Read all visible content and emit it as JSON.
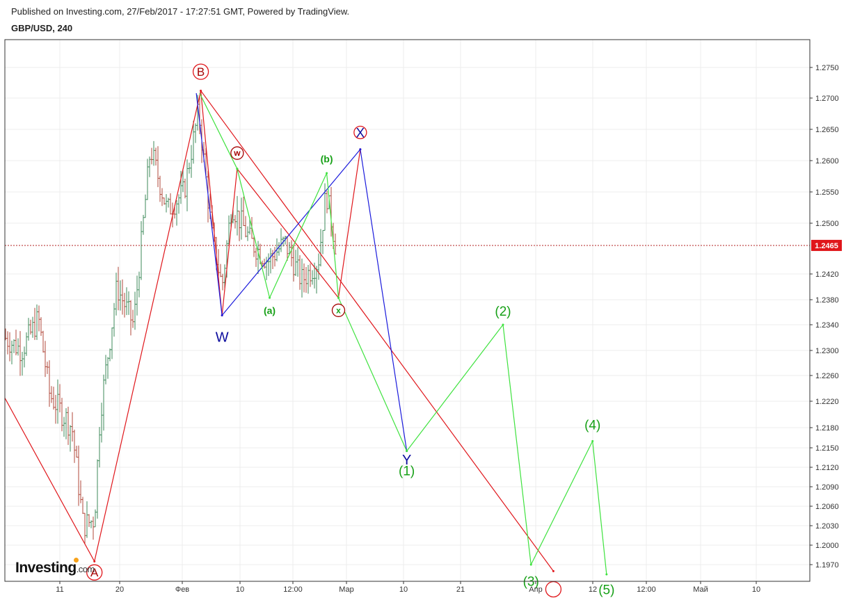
{
  "header": {
    "published": "Published on Investing.com, 27/Feb/2017 - 17:27:51 GMT, Powered by TradingView.",
    "symbol": "GBP/USD, 240"
  },
  "logo": {
    "brand": "Investing",
    "suffix": ".com"
  },
  "colors": {
    "red": "#e0161b",
    "green": "#3ee23e",
    "blue": "#1a1adc",
    "dark_red": "#a50000",
    "label_green": "#16a016",
    "label_blue": "#0d0d9e",
    "candle_up": "#3c8a5a",
    "candle_down": "#b0473a",
    "price_line": "#b22222"
  },
  "chart_data": {
    "type": "line",
    "title": "GBP/USD, 240",
    "ylim": [
      1.193,
      1.2785
    ],
    "y_ticks": [
      1.275,
      1.27,
      1.265,
      1.26,
      1.255,
      1.25,
      1.242,
      1.238,
      1.234,
      1.23,
      1.226,
      1.222,
      1.218,
      1.215,
      1.212,
      1.209,
      1.206,
      1.203,
      1.2,
      1.197
    ],
    "x_ticks": [
      "11",
      "20",
      "Фев",
      "10",
      "12:00",
      "Мар",
      "10",
      "21",
      "Апр",
      "12",
      "12:00",
      "Май",
      "10"
    ],
    "current_price": 1.2465,
    "current_price_label": "1.2465",
    "series": [
      {
        "name": "red_waves",
        "color": "#e0161b",
        "lines": [
          [
            [
              0,
              1.2225
            ],
            [
              16,
              1.1975
            ]
          ],
          [
            [
              16,
              1.1975
            ],
            [
              35,
              1.2712
            ]
          ],
          [
            [
              35,
              1.2712
            ],
            [
              38.8,
              1.2355
            ]
          ],
          [
            [
              38.8,
              1.2355
            ],
            [
              41.5,
              1.2587
            ]
          ],
          [
            [
              41.5,
              1.2587
            ],
            [
              59.6,
              1.2383
            ]
          ],
          [
            [
              59.6,
              1.2383
            ],
            [
              63.5,
              1.2618
            ]
          ],
          [
            [
              35,
              1.2712
            ],
            [
              98,
              1.196
            ]
          ]
        ]
      },
      {
        "name": "blue_waves",
        "color": "#1a1adc",
        "lines": [
          [
            [
              34.2,
              1.2708
            ],
            [
              38.8,
              1.2355
            ]
          ],
          [
            [
              38.8,
              1.2355
            ],
            [
              63.5,
              1.2618
            ]
          ],
          [
            [
              63.5,
              1.2618
            ],
            [
              71.8,
              1.2145
            ]
          ]
        ]
      },
      {
        "name": "green_waves",
        "color": "#3ee23e",
        "lines": [
          [
            [
              34.8,
              1.2708
            ],
            [
              41.5,
              1.2587
            ]
          ],
          [
            [
              41.5,
              1.2587
            ],
            [
              47.3,
              1.2383
            ]
          ],
          [
            [
              47.3,
              1.2383
            ],
            [
              57.5,
              1.258
            ]
          ],
          [
            [
              57.5,
              1.258
            ],
            [
              59.6,
              1.2383
            ]
          ],
          [
            [
              59.6,
              1.2383
            ],
            [
              71.8,
              1.2145
            ]
          ],
          [
            [
              71.8,
              1.2145
            ],
            [
              89,
              1.234
            ]
          ],
          [
            [
              89,
              1.234
            ],
            [
              94,
              1.197
            ]
          ],
          [
            [
              94,
              1.197
            ],
            [
              105,
              1.216
            ]
          ],
          [
            [
              105,
              1.216
            ],
            [
              107.5,
              1.1955
            ]
          ]
        ]
      }
    ],
    "wave_labels": [
      {
        "text": "A",
        "style": "red-circle",
        "x": 16,
        "y": 1.1958
      },
      {
        "text": "B",
        "style": "red-circle",
        "x": 35,
        "y": 1.2743
      },
      {
        "text": "W",
        "style": "blue-text",
        "x": 38.8,
        "y": 1.2322
      },
      {
        "text": "w",
        "style": "small-red-circle",
        "x": 41.5,
        "y": 1.2612
      },
      {
        "text": "(a)",
        "style": "green-small",
        "x": 47.3,
        "y": 1.2363
      },
      {
        "text": "(b)",
        "style": "green-small",
        "x": 57.5,
        "y": 1.2603
      },
      {
        "text": "x",
        "style": "small-red-circle-green",
        "x": 59.6,
        "y": 1.2363
      },
      {
        "text": "X",
        "style": "blue-red-circle",
        "x": 63.5,
        "y": 1.2645
      },
      {
        "text": "Y",
        "style": "blue-text",
        "x": 71.8,
        "y": 1.2133
      },
      {
        "text": "(1)",
        "style": "green-text",
        "x": 71.8,
        "y": 1.2115
      },
      {
        "text": "(2)",
        "style": "green-text",
        "x": 89,
        "y": 1.2362
      },
      {
        "text": "(3)",
        "style": "green-text",
        "x": 94,
        "y": 1.1945
      },
      {
        "text": "(4)",
        "style": "green-text",
        "x": 105,
        "y": 1.2185
      },
      {
        "text": "(5)",
        "style": "green-text",
        "x": 107.5,
        "y": 1.1932
      },
      {
        "text": "",
        "style": "red-circle-partial",
        "x": 98,
        "y": 1.1932
      }
    ]
  }
}
